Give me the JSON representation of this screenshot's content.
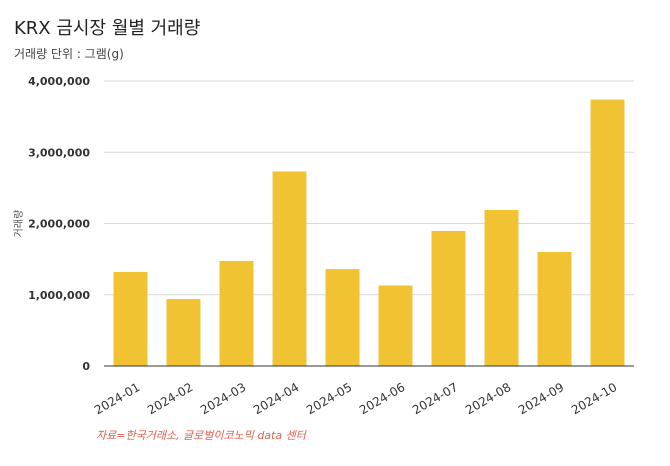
{
  "chart_data": {
    "type": "bar",
    "title": "KRX 금시장 월별 거래량",
    "subtitle": "거래량 단위 : 그램(g)",
    "ylabel": "거래량",
    "xlabel": "",
    "source": "자료=한국거래소, 글로벌이코노믹 data 센터",
    "categories": [
      "2024-01",
      "2024-02",
      "2024-03",
      "2024-04",
      "2024-05",
      "2024-06",
      "2024-07",
      "2024-08",
      "2024-09",
      "2024-10"
    ],
    "values": [
      1320000,
      940000,
      1475000,
      2730000,
      1360000,
      1130000,
      1895000,
      2190000,
      1600000,
      3740000
    ],
    "ylim": [
      0,
      4000000
    ],
    "yticks": [
      0,
      1000000,
      2000000,
      3000000,
      4000000
    ],
    "ytick_labels": [
      "0",
      "1,000,000",
      "2,000,000",
      "3,000,000",
      "4,000,000"
    ],
    "grid": true,
    "bar_color": "#f1c232",
    "grid_color": "#d9d9d9"
  }
}
